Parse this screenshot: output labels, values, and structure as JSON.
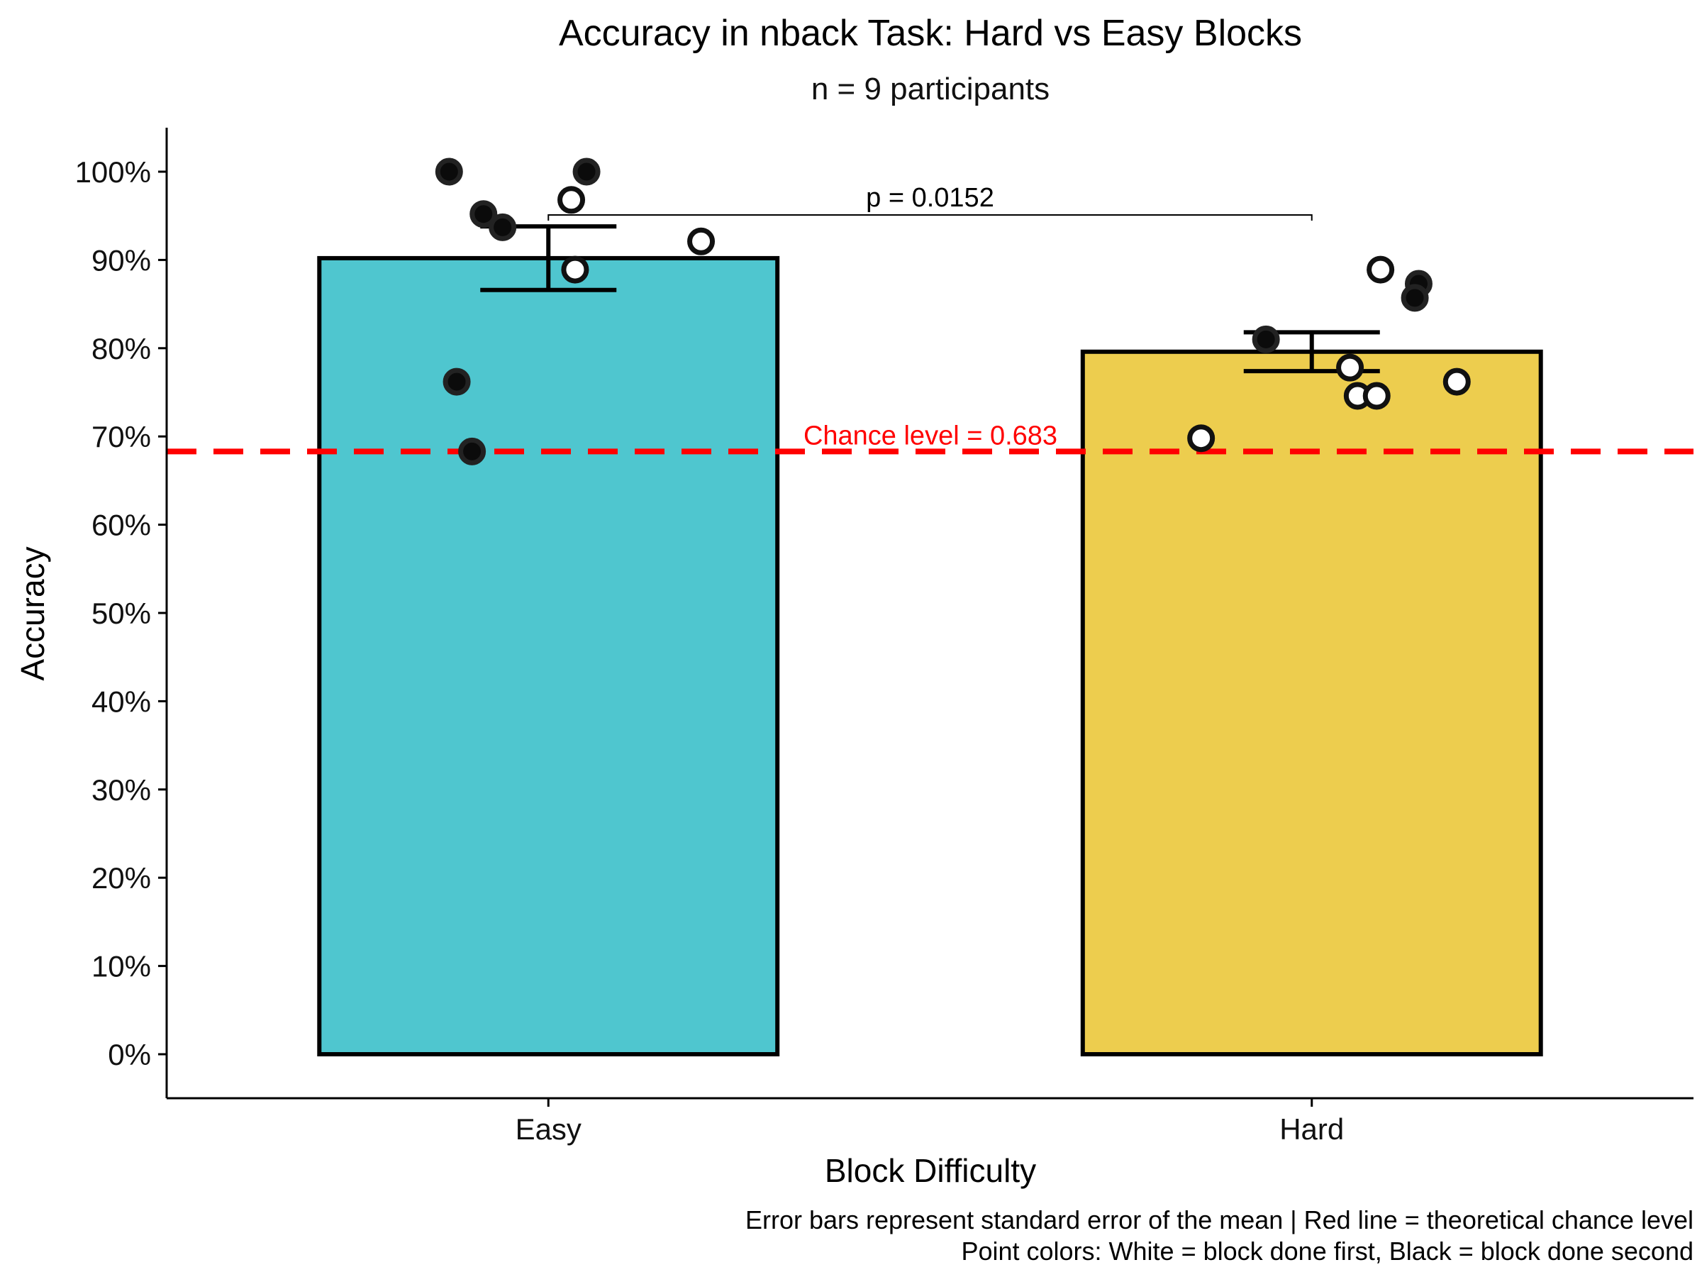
{
  "chart_data": {
    "type": "bar",
    "title": "Accuracy in nback Task: Hard vs Easy Blocks",
    "subtitle": "n = 9 participants",
    "xlabel": "Block Difficulty",
    "ylabel": "Accuracy",
    "categories": [
      "Easy",
      "Hard"
    ],
    "values": [
      0.902,
      0.796
    ],
    "bar_colors": [
      "#4FC6CF",
      "#EDCD4E"
    ],
    "error_bars": [
      {
        "category": "Easy",
        "low": 0.866,
        "high": 0.938
      },
      {
        "category": "Hard",
        "low": 0.774,
        "high": 0.818
      }
    ],
    "ylim": [
      -0.05,
      1.05
    ],
    "yticks": [
      0,
      0.1,
      0.2,
      0.3,
      0.4,
      0.5,
      0.6,
      0.7,
      0.8,
      0.9,
      1.0
    ],
    "ytick_labels": [
      "0%",
      "10%",
      "20%",
      "30%",
      "40%",
      "50%",
      "60%",
      "70%",
      "80%",
      "90%",
      "100%"
    ],
    "points": [
      {
        "category": "Easy",
        "offset": -0.13,
        "y": 1.0,
        "order": "second"
      },
      {
        "category": "Easy",
        "offset": 0.05,
        "y": 1.0,
        "order": "second"
      },
      {
        "category": "Easy",
        "offset": -0.085,
        "y": 0.952,
        "order": "second"
      },
      {
        "category": "Easy",
        "offset": -0.06,
        "y": 0.937,
        "order": "second"
      },
      {
        "category": "Easy",
        "offset": -0.12,
        "y": 0.762,
        "order": "second"
      },
      {
        "category": "Easy",
        "offset": -0.1,
        "y": 0.683,
        "order": "second"
      },
      {
        "category": "Easy",
        "offset": 0.03,
        "y": 0.968,
        "order": "first"
      },
      {
        "category": "Easy",
        "offset": 0.035,
        "y": 0.889,
        "order": "first"
      },
      {
        "category": "Easy",
        "offset": 0.2,
        "y": 0.921,
        "order": "first"
      },
      {
        "category": "Hard",
        "offset": 0.14,
        "y": 0.873,
        "order": "second"
      },
      {
        "category": "Hard",
        "offset": 0.135,
        "y": 0.857,
        "order": "second"
      },
      {
        "category": "Hard",
        "offset": -0.06,
        "y": 0.81,
        "order": "second"
      },
      {
        "category": "Hard",
        "offset": 0.09,
        "y": 0.889,
        "order": "first"
      },
      {
        "category": "Hard",
        "offset": 0.05,
        "y": 0.778,
        "order": "first"
      },
      {
        "category": "Hard",
        "offset": 0.06,
        "y": 0.746,
        "order": "first"
      },
      {
        "category": "Hard",
        "offset": 0.085,
        "y": 0.746,
        "order": "first"
      },
      {
        "category": "Hard",
        "offset": 0.19,
        "y": 0.762,
        "order": "first"
      },
      {
        "category": "Hard",
        "offset": -0.145,
        "y": 0.698,
        "order": "first"
      }
    ],
    "significance": {
      "label": "p = 0.0152",
      "y": 0.951,
      "from": "Easy",
      "to": "Hard"
    },
    "reference_line": {
      "y": 0.683,
      "label": "Chance level = 0.683",
      "color": "#FF0000",
      "style": "dashed"
    },
    "caption": [
      "Error bars represent standard error of the mean | Red line = theoretical chance level",
      "Point colors: White = block done first, Black = block done second"
    ],
    "grid": false,
    "legend": "none"
  }
}
